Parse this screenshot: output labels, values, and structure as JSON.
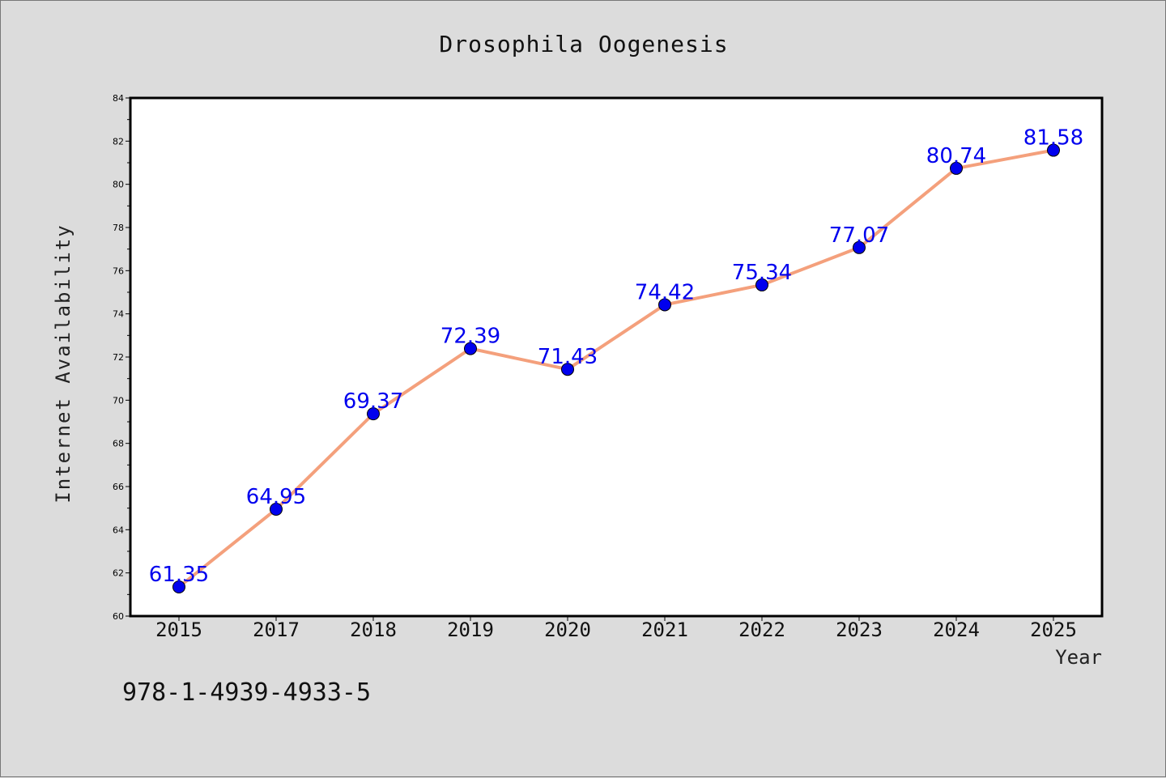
{
  "chart_data": {
    "type": "line",
    "title": "Drosophila Oogenesis",
    "xlabel": "Year",
    "ylabel": "Internet Availability",
    "categories": [
      "2015",
      "2017",
      "2018",
      "2019",
      "2020",
      "2021",
      "2022",
      "2023",
      "2024",
      "2025"
    ],
    "series": [
      {
        "values": [
          61.35,
          64.95,
          69.37,
          72.39,
          71.43,
          74.42,
          75.34,
          77.07,
          80.74,
          81.58
        ]
      }
    ],
    "data_labels": [
      "61.35",
      "64.95",
      "69.37",
      "72.39",
      "71.43",
      "74.42",
      "75.34",
      "77.07",
      "80.74",
      "81.58"
    ],
    "ylim": [
      60,
      84
    ],
    "yticks": [
      60,
      62,
      64,
      66,
      68,
      70,
      72,
      74,
      76,
      78,
      80,
      82,
      84
    ],
    "grid": false,
    "line_color": "#f4a07c",
    "marker_color": "#0000ee",
    "label_color": "#0000ee",
    "background_color": "#dcdcdc",
    "plot_background_color": "#ffffff"
  },
  "annotation": {
    "isbn": "978-1-4939-4933-5"
  }
}
